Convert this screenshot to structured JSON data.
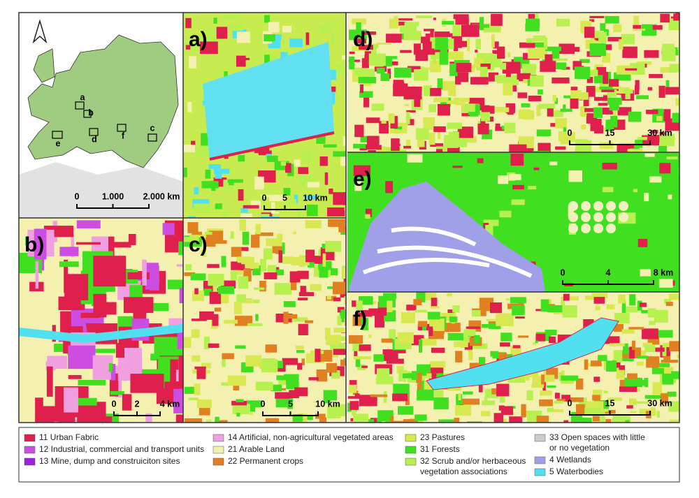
{
  "overview": {
    "box_labels": [
      "a",
      "b",
      "c",
      "d",
      "e",
      "f"
    ],
    "scale": [
      "0",
      "1.000",
      "2.000 km"
    ]
  },
  "panels": [
    {
      "label": "a)",
      "scale": [
        "0",
        "5",
        "10 km"
      ]
    },
    {
      "label": "b)",
      "scale": [
        "0",
        "2",
        "4 km"
      ]
    },
    {
      "label": "c)",
      "scale": [
        "0",
        "5",
        "10 km"
      ]
    },
    {
      "label": "d)",
      "scale": [
        "0",
        "15",
        "30 km"
      ]
    },
    {
      "label": "e)",
      "scale": [
        "0",
        "4",
        "8 km"
      ]
    },
    {
      "label": "f)",
      "scale": [
        "0",
        "15",
        "30 km"
      ]
    }
  ],
  "legend": [
    {
      "lines": [
        "11 Urban Fabric"
      ],
      "color": "#e0204c"
    },
    {
      "lines": [
        "12 Industrial, commercial and transport units"
      ],
      "color": "#cc4de0"
    },
    {
      "lines": [
        "13 Mine, dump and construiciton sites"
      ],
      "color": "#a020e0"
    },
    {
      "lines": [
        "14 Artificial, non-agricultural vegetated areas"
      ],
      "color": "#f0a0e0"
    },
    {
      "lines": [
        "21 Arable Land"
      ],
      "color": "#f4f0b0"
    },
    {
      "lines": [
        "22 Permanent crops"
      ],
      "color": "#e08020"
    },
    {
      "lines": [
        "23 Pastures"
      ],
      "color": "#d8e850"
    },
    {
      "lines": [
        "31 Forests"
      ],
      "color": "#40e020"
    },
    {
      "lines": [
        "32 Scrub and/or herbaceous",
        "vegetation associations"
      ],
      "color": "#b8f050"
    },
    {
      "lines": [
        "33 Open spaces with little",
        "or no vegetation"
      ],
      "color": "#cccccc"
    },
    {
      "lines": [
        "4 Wetlands"
      ],
      "color": "#a0a0e8"
    },
    {
      "lines": [
        "5 Waterbodies"
      ],
      "color": "#50e0f0"
    }
  ]
}
